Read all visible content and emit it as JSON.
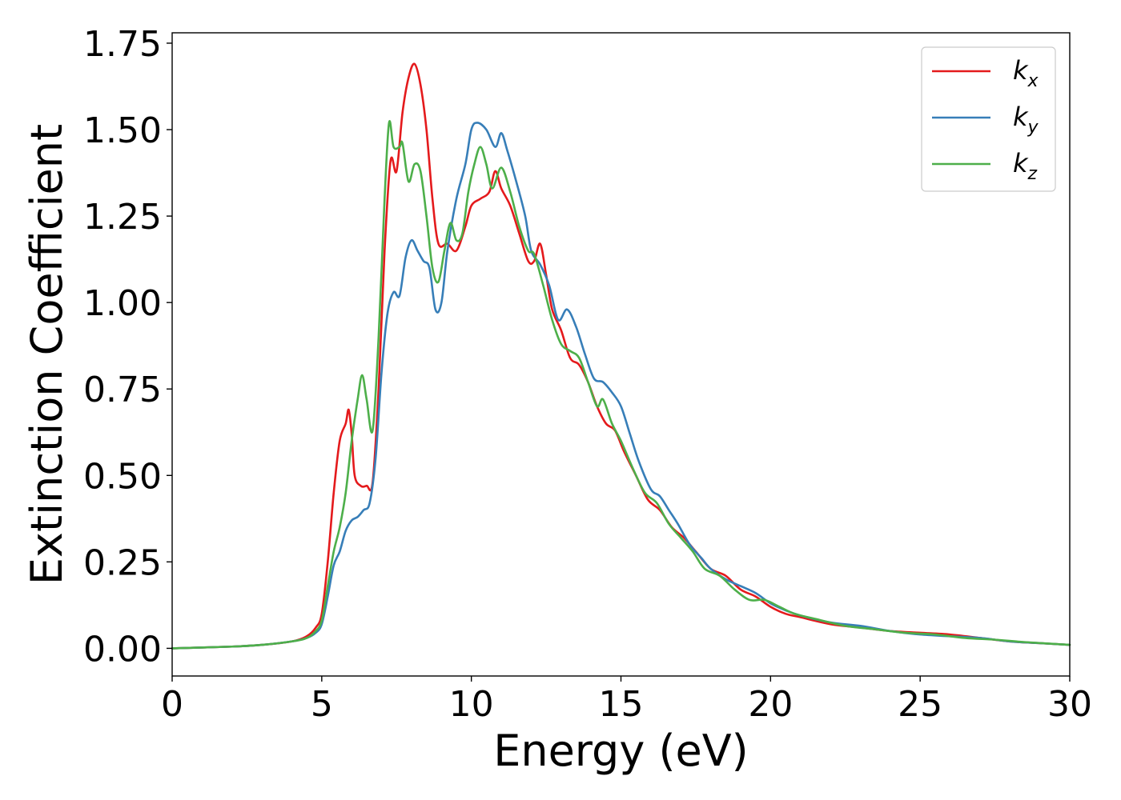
{
  "chart_data": {
    "type": "line",
    "title": "",
    "xlabel": "Energy (eV)",
    "ylabel": "Extinction Coefficient",
    "xlim": [
      0,
      30
    ],
    "ylim": [
      -0.08,
      1.78
    ],
    "xticks": [
      0,
      5,
      10,
      15,
      20,
      25,
      30
    ],
    "yticks": [
      0.0,
      0.25,
      0.5,
      0.75,
      1.0,
      1.25,
      1.5,
      1.75
    ],
    "xtick_labels": [
      "0",
      "5",
      "10",
      "15",
      "20",
      "25",
      "30"
    ],
    "ytick_labels": [
      "0.00",
      "0.25",
      "0.50",
      "0.75",
      "1.00",
      "1.25",
      "1.50",
      "1.75"
    ],
    "grid": false,
    "legend_position": "top-right",
    "series": [
      {
        "name": "kx",
        "label_main": "k",
        "label_sub": "x",
        "color": "#e41a1c",
        "points": [
          [
            0,
            0.0
          ],
          [
            2,
            0.005
          ],
          [
            3,
            0.01
          ],
          [
            4,
            0.02
          ],
          [
            4.5,
            0.035
          ],
          [
            4.8,
            0.06
          ],
          [
            5.0,
            0.1
          ],
          [
            5.2,
            0.25
          ],
          [
            5.4,
            0.45
          ],
          [
            5.6,
            0.6
          ],
          [
            5.8,
            0.65
          ],
          [
            5.9,
            0.69
          ],
          [
            6.0,
            0.62
          ],
          [
            6.1,
            0.5
          ],
          [
            6.3,
            0.47
          ],
          [
            6.5,
            0.47
          ],
          [
            6.7,
            0.48
          ],
          [
            6.9,
            0.75
          ],
          [
            7.1,
            1.15
          ],
          [
            7.3,
            1.41
          ],
          [
            7.5,
            1.38
          ],
          [
            7.7,
            1.55
          ],
          [
            7.9,
            1.65
          ],
          [
            8.1,
            1.69
          ],
          [
            8.3,
            1.63
          ],
          [
            8.5,
            1.5
          ],
          [
            8.7,
            1.3
          ],
          [
            8.9,
            1.17
          ],
          [
            9.2,
            1.17
          ],
          [
            9.5,
            1.15
          ],
          [
            9.8,
            1.22
          ],
          [
            10.0,
            1.28
          ],
          [
            10.3,
            1.3
          ],
          [
            10.6,
            1.32
          ],
          [
            10.8,
            1.38
          ],
          [
            11.0,
            1.33
          ],
          [
            11.3,
            1.28
          ],
          [
            11.6,
            1.2
          ],
          [
            11.9,
            1.12
          ],
          [
            12.1,
            1.12
          ],
          [
            12.3,
            1.17
          ],
          [
            12.5,
            1.08
          ],
          [
            12.7,
            0.98
          ],
          [
            13.0,
            0.92
          ],
          [
            13.3,
            0.84
          ],
          [
            13.6,
            0.82
          ],
          [
            13.9,
            0.77
          ],
          [
            14.2,
            0.7
          ],
          [
            14.5,
            0.65
          ],
          [
            14.8,
            0.63
          ],
          [
            15.1,
            0.57
          ],
          [
            15.5,
            0.5
          ],
          [
            15.9,
            0.43
          ],
          [
            16.3,
            0.4
          ],
          [
            16.7,
            0.35
          ],
          [
            17.1,
            0.32
          ],
          [
            17.5,
            0.28
          ],
          [
            18.0,
            0.23
          ],
          [
            18.5,
            0.21
          ],
          [
            19.0,
            0.17
          ],
          [
            19.5,
            0.15
          ],
          [
            20.0,
            0.12
          ],
          [
            20.5,
            0.1
          ],
          [
            21.0,
            0.09
          ],
          [
            22.0,
            0.07
          ],
          [
            23.0,
            0.06
          ],
          [
            24.0,
            0.05
          ],
          [
            25.0,
            0.045
          ],
          [
            26.0,
            0.04
          ],
          [
            27.0,
            0.03
          ],
          [
            28.0,
            0.02
          ],
          [
            29.0,
            0.015
          ],
          [
            30.0,
            0.01
          ]
        ]
      },
      {
        "name": "ky",
        "label_main": "k",
        "label_sub": "y",
        "color": "#377eb8",
        "points": [
          [
            0,
            0.0
          ],
          [
            2,
            0.005
          ],
          [
            3,
            0.01
          ],
          [
            4,
            0.02
          ],
          [
            4.5,
            0.03
          ],
          [
            4.8,
            0.045
          ],
          [
            5.0,
            0.07
          ],
          [
            5.2,
            0.15
          ],
          [
            5.4,
            0.24
          ],
          [
            5.6,
            0.28
          ],
          [
            5.8,
            0.34
          ],
          [
            6.0,
            0.37
          ],
          [
            6.2,
            0.38
          ],
          [
            6.4,
            0.4
          ],
          [
            6.6,
            0.42
          ],
          [
            6.8,
            0.55
          ],
          [
            7.0,
            0.8
          ],
          [
            7.2,
            0.97
          ],
          [
            7.4,
            1.03
          ],
          [
            7.6,
            1.02
          ],
          [
            7.8,
            1.13
          ],
          [
            8.0,
            1.18
          ],
          [
            8.2,
            1.15
          ],
          [
            8.4,
            1.12
          ],
          [
            8.6,
            1.1
          ],
          [
            8.8,
            0.98
          ],
          [
            9.0,
            1.0
          ],
          [
            9.2,
            1.15
          ],
          [
            9.5,
            1.3
          ],
          [
            9.8,
            1.4
          ],
          [
            10.0,
            1.5
          ],
          [
            10.2,
            1.52
          ],
          [
            10.5,
            1.5
          ],
          [
            10.8,
            1.45
          ],
          [
            11.0,
            1.49
          ],
          [
            11.2,
            1.44
          ],
          [
            11.5,
            1.35
          ],
          [
            11.8,
            1.25
          ],
          [
            12.0,
            1.15
          ],
          [
            12.3,
            1.11
          ],
          [
            12.6,
            1.05
          ],
          [
            12.9,
            0.95
          ],
          [
            13.2,
            0.98
          ],
          [
            13.5,
            0.93
          ],
          [
            13.8,
            0.85
          ],
          [
            14.1,
            0.78
          ],
          [
            14.4,
            0.77
          ],
          [
            14.7,
            0.74
          ],
          [
            15.0,
            0.7
          ],
          [
            15.3,
            0.62
          ],
          [
            15.6,
            0.54
          ],
          [
            16.0,
            0.46
          ],
          [
            16.3,
            0.44
          ],
          [
            16.6,
            0.4
          ],
          [
            16.9,
            0.36
          ],
          [
            17.3,
            0.3
          ],
          [
            17.7,
            0.26
          ],
          [
            18.0,
            0.23
          ],
          [
            18.5,
            0.2
          ],
          [
            19.0,
            0.18
          ],
          [
            19.5,
            0.16
          ],
          [
            20.0,
            0.13
          ],
          [
            20.5,
            0.11
          ],
          [
            21.0,
            0.095
          ],
          [
            22.0,
            0.075
          ],
          [
            23.0,
            0.065
          ],
          [
            24.0,
            0.05
          ],
          [
            25.0,
            0.04
          ],
          [
            26.0,
            0.035
          ],
          [
            27.0,
            0.03
          ],
          [
            28.0,
            0.02
          ],
          [
            29.0,
            0.015
          ],
          [
            30.0,
            0.01
          ]
        ]
      },
      {
        "name": "kz",
        "label_main": "k",
        "label_sub": "z",
        "color": "#4daf4a",
        "points": [
          [
            0,
            0.0
          ],
          [
            2,
            0.005
          ],
          [
            3,
            0.01
          ],
          [
            4,
            0.02
          ],
          [
            4.5,
            0.03
          ],
          [
            4.8,
            0.05
          ],
          [
            5.0,
            0.08
          ],
          [
            5.2,
            0.18
          ],
          [
            5.4,
            0.28
          ],
          [
            5.6,
            0.35
          ],
          [
            5.8,
            0.45
          ],
          [
            6.0,
            0.6
          ],
          [
            6.2,
            0.72
          ],
          [
            6.35,
            0.79
          ],
          [
            6.5,
            0.72
          ],
          [
            6.7,
            0.63
          ],
          [
            6.9,
            0.9
          ],
          [
            7.1,
            1.3
          ],
          [
            7.25,
            1.52
          ],
          [
            7.4,
            1.45
          ],
          [
            7.6,
            1.45
          ],
          [
            7.7,
            1.46
          ],
          [
            7.9,
            1.35
          ],
          [
            8.1,
            1.4
          ],
          [
            8.3,
            1.38
          ],
          [
            8.5,
            1.25
          ],
          [
            8.7,
            1.1
          ],
          [
            8.9,
            1.06
          ],
          [
            9.1,
            1.15
          ],
          [
            9.3,
            1.23
          ],
          [
            9.5,
            1.18
          ],
          [
            9.7,
            1.2
          ],
          [
            9.9,
            1.32
          ],
          [
            10.1,
            1.4
          ],
          [
            10.3,
            1.45
          ],
          [
            10.5,
            1.4
          ],
          [
            10.7,
            1.33
          ],
          [
            11.0,
            1.39
          ],
          [
            11.3,
            1.32
          ],
          [
            11.6,
            1.22
          ],
          [
            11.9,
            1.15
          ],
          [
            12.1,
            1.14
          ],
          [
            12.4,
            1.05
          ],
          [
            12.7,
            0.95
          ],
          [
            13.0,
            0.88
          ],
          [
            13.3,
            0.86
          ],
          [
            13.6,
            0.84
          ],
          [
            13.9,
            0.77
          ],
          [
            14.2,
            0.7
          ],
          [
            14.4,
            0.72
          ],
          [
            14.7,
            0.65
          ],
          [
            15.0,
            0.6
          ],
          [
            15.4,
            0.52
          ],
          [
            15.8,
            0.45
          ],
          [
            16.2,
            0.42
          ],
          [
            16.6,
            0.36
          ],
          [
            17.0,
            0.32
          ],
          [
            17.4,
            0.28
          ],
          [
            17.8,
            0.23
          ],
          [
            18.3,
            0.21
          ],
          [
            18.8,
            0.17
          ],
          [
            19.3,
            0.14
          ],
          [
            19.8,
            0.14
          ],
          [
            20.3,
            0.12
          ],
          [
            20.8,
            0.1
          ],
          [
            21.5,
            0.085
          ],
          [
            22.5,
            0.065
          ],
          [
            23.5,
            0.055
          ],
          [
            24.5,
            0.045
          ],
          [
            25.5,
            0.04
          ],
          [
            26.5,
            0.03
          ],
          [
            27.5,
            0.025
          ],
          [
            28.5,
            0.018
          ],
          [
            30.0,
            0.01
          ]
        ]
      }
    ]
  }
}
